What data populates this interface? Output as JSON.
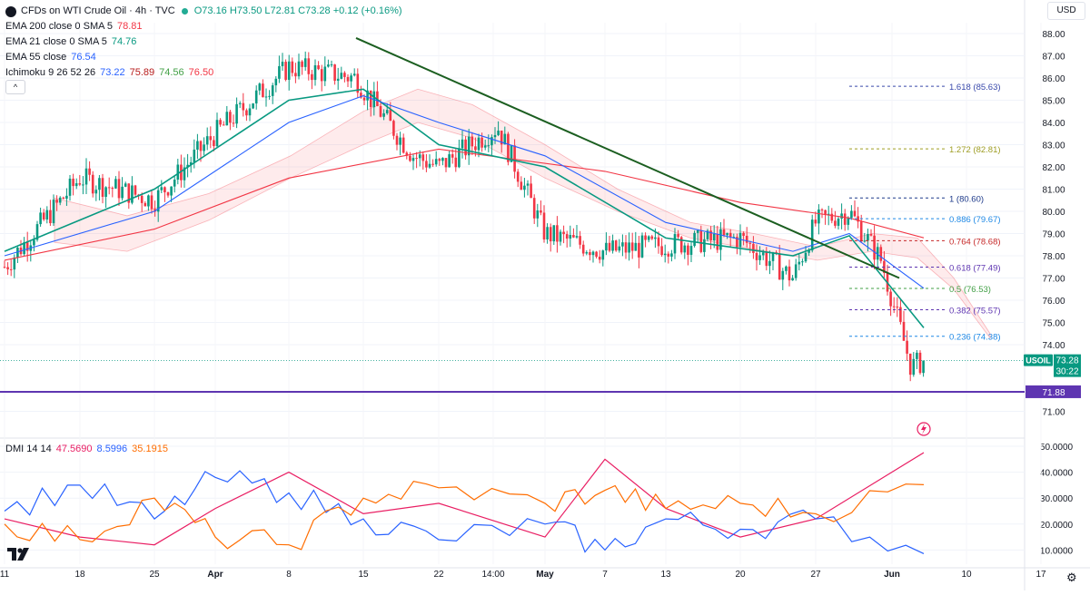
{
  "header": {
    "title": "CFDs on WTI Crude Oil · 4h · TVC",
    "ohlc": {
      "o": "O73.16",
      "h": "H73.50",
      "l": "L72.81",
      "c": "C73.28",
      "chg": "+0.12 (+0.16%)"
    },
    "indicators": [
      {
        "label": "EMA 200 close 0 SMA 5",
        "values": [
          "78.81"
        ],
        "colors": [
          "#f23645"
        ]
      },
      {
        "label": "EMA 21 close 0 SMA 5",
        "values": [
          "74.76"
        ],
        "colors": [
          "#089981"
        ]
      },
      {
        "label": "EMA 55 close",
        "values": [
          "76.54"
        ],
        "colors": [
          "#2962ff"
        ]
      },
      {
        "label": "Ichimoku 9 26 52 26",
        "values": [
          "73.22",
          "75.89",
          "74.56",
          "76.50"
        ],
        "colors": [
          "#2962ff",
          "#b71c1c",
          "#43a047",
          "#f23645"
        ]
      }
    ],
    "collapse_label": "^",
    "currency": "USD"
  },
  "price_axis": {
    "ticks": [
      "88.00",
      "87.00",
      "86.00",
      "85.00",
      "84.00",
      "83.00",
      "82.00",
      "81.00",
      "80.00",
      "79.00",
      "78.00",
      "77.00",
      "76.00",
      "75.00",
      "74.00",
      "71.00"
    ],
    "current_label": "USOIL",
    "current_price": "73.28",
    "countdown": "30:22",
    "horizontal_level": "71.88"
  },
  "time_axis": {
    "ticks": [
      "11",
      "18",
      "25",
      "Apr",
      "8",
      "15",
      "22",
      "14:00",
      "May",
      "7",
      "13",
      "20",
      "27",
      "Jun",
      "10",
      "17"
    ]
  },
  "fib_levels": [
    {
      "ratio": "1.618",
      "label": "1.618 (85.63)",
      "price": 85.63,
      "color": "#3949ab"
    },
    {
      "ratio": "1.272",
      "label": "1.272 (82.81)",
      "price": 82.81,
      "color": "#9e9d24"
    },
    {
      "ratio": "1",
      "label": "1 (80.60)",
      "price": 80.6,
      "color": "#1e3a8a"
    },
    {
      "ratio": "0.886",
      "label": "0.886 (79.67)",
      "price": 79.67,
      "color": "#1e88e5"
    },
    {
      "ratio": "0.764",
      "label": "0.764 (78.68)",
      "price": 78.68,
      "color": "#c62828"
    },
    {
      "ratio": "0.618",
      "label": "0.618 (77.49)",
      "price": 77.49,
      "color": "#5e35b1"
    },
    {
      "ratio": "0.5",
      "label": "0.5 (76.53)",
      "price": 76.53,
      "color": "#43a047"
    },
    {
      "ratio": "0.382",
      "label": "0.382 (75.57)",
      "price": 75.57,
      "color": "#5e35b1"
    },
    {
      "ratio": "0.236",
      "label": "0.236 (74.38)",
      "price": 74.38,
      "color": "#1e88e5"
    }
  ],
  "dmi": {
    "label": "DMI 14 14",
    "values": [
      "47.5690",
      "8.5996",
      "35.1915"
    ],
    "colors": [
      "#e91e63",
      "#2962ff",
      "#ff6d00"
    ],
    "axis_ticks": [
      "50.0000",
      "40.0000",
      "30.0000",
      "20.0000",
      "10.0000"
    ]
  },
  "chart_data": [
    {
      "type": "line",
      "title": "CFDs on WTI Crude Oil · 4h · TVC",
      "xlabel": "",
      "ylabel": "",
      "ylim": [
        71,
        88.5
      ],
      "x_note": "approximate 4h bar index positions along the visible date axis",
      "series": [
        {
          "name": "Price (close, approx.)",
          "color": "#089981",
          "x": [
            "Mar 11",
            "Mar 18",
            "Mar 25",
            "Apr 1",
            "Apr 8",
            "Apr 12",
            "Apr 15",
            "Apr 19",
            "Apr 22",
            "Apr 26",
            "May 1",
            "May 7",
            "May 13",
            "May 20",
            "May 24",
            "May 27",
            "May 29",
            "May 31",
            "Jun 3",
            "Jun 4"
          ],
          "values": [
            77.5,
            81.5,
            80.5,
            83.5,
            86.5,
            86.0,
            85.5,
            82.5,
            82.0,
            83.8,
            79.0,
            78.2,
            78.5,
            78.8,
            77.0,
            79.5,
            80.0,
            77.8,
            73.0,
            73.28
          ]
        },
        {
          "name": "EMA 200",
          "color": "#f23645",
          "x": [
            "Mar 11",
            "Mar 25",
            "Apr 8",
            "Apr 22",
            "May 7",
            "May 20",
            "May 29",
            "Jun 4"
          ],
          "values": [
            77.8,
            79.2,
            81.5,
            82.8,
            81.8,
            80.4,
            79.7,
            78.81
          ]
        },
        {
          "name": "EMA 21",
          "color": "#089981",
          "x": [
            "Mar 11",
            "Mar 25",
            "Apr 8",
            "Apr 15",
            "Apr 22",
            "May 1",
            "May 13",
            "May 24",
            "May 29",
            "Jun 4"
          ],
          "values": [
            78.2,
            81.0,
            85.0,
            85.5,
            83.0,
            82.0,
            78.8,
            78.0,
            78.9,
            74.76
          ]
        },
        {
          "name": "EMA 55",
          "color": "#2962ff",
          "x": [
            "Mar 11",
            "Mar 25",
            "Apr 8",
            "Apr 15",
            "Apr 22",
            "May 1",
            "May 13",
            "May 24",
            "May 29",
            "Jun 4"
          ],
          "values": [
            78.0,
            80.0,
            84.0,
            85.2,
            84.0,
            82.5,
            79.5,
            78.2,
            79.0,
            76.54
          ]
        }
      ],
      "annotations": [
        {
          "type": "trendline",
          "from": {
            "x": "Apr 12",
            "price": 87.8
          },
          "to": {
            "x": "Jun 1",
            "price": 77.0
          },
          "color": "#1b5e20"
        },
        {
          "type": "hline",
          "price": 71.88,
          "color": "#5e35b1"
        }
      ]
    },
    {
      "type": "line",
      "title": "DMI 14 14",
      "ylim": [
        5,
        52
      ],
      "series": [
        {
          "name": "ADX",
          "color": "#e91e63",
          "x": [
            "Mar 11",
            "Mar 18",
            "Mar 25",
            "Apr 1",
            "Apr 8",
            "Apr 15",
            "Apr 22",
            "May 1",
            "May 7",
            "May 13",
            "May 20",
            "May 27",
            "Jun 4"
          ],
          "values": [
            22,
            15,
            12,
            26,
            40,
            24,
            28,
            15,
            45,
            26,
            15,
            22,
            47.569
          ]
        },
        {
          "name": "+DI",
          "color": "#2962ff",
          "x": [
            "Mar 11",
            "Mar 18",
            "Mar 25",
            "Apr 1",
            "Apr 8",
            "Apr 15",
            "Apr 22",
            "May 1",
            "May 7",
            "May 13",
            "May 20",
            "May 27",
            "Jun 4"
          ],
          "values": [
            25,
            35,
            22,
            38,
            32,
            22,
            14,
            20,
            10,
            22,
            18,
            22,
            8.5996
          ]
        },
        {
          "name": "-DI",
          "color": "#ff6d00",
          "x": [
            "Mar 11",
            "Mar 18",
            "Mar 25",
            "Apr 1",
            "Apr 8",
            "Apr 15",
            "Apr 22",
            "May 1",
            "May 7",
            "May 13",
            "May 20",
            "May 27",
            "Jun 4"
          ],
          "values": [
            20,
            14,
            30,
            15,
            12,
            30,
            34,
            28,
            33,
            26,
            28,
            24,
            35.1915
          ]
        }
      ]
    }
  ]
}
